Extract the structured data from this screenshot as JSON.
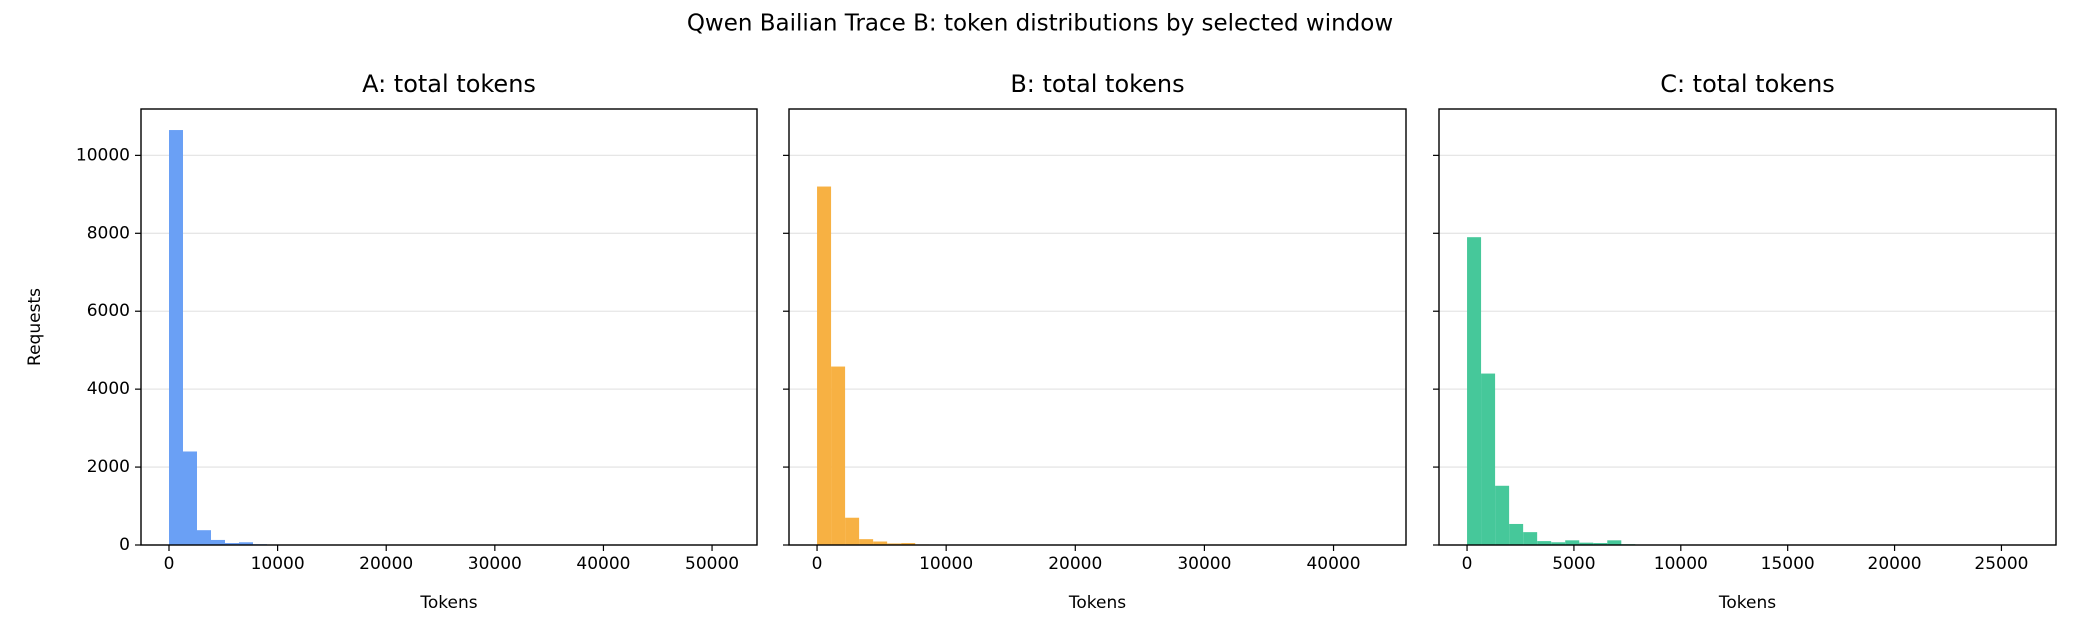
{
  "title": "Qwen Bailian Trace B: token distributions by selected window",
  "chart_data": [
    {
      "type": "histogram",
      "title": "A: total tokens",
      "xlabel": "Tokens",
      "ylabel": "Requests",
      "color": "#6aa0f5",
      "grid": true,
      "bins": [
        0,
        1289,
        2578,
        3867,
        5156,
        6445,
        7734,
        9023,
        10312,
        11601,
        12890,
        14179,
        15468,
        16757,
        18046,
        19335,
        20624,
        21913,
        23202,
        24491,
        25780,
        27069,
        28358,
        29647,
        30936,
        32225,
        33514,
        34803,
        36092,
        37381,
        38670,
        39959,
        41248,
        42537,
        43826,
        45115,
        46404,
        47693,
        48982,
        50271,
        51560
      ],
      "values": [
        10650,
        2400,
        380,
        130,
        50,
        70,
        20,
        10,
        5,
        4,
        3,
        2,
        2,
        1,
        1,
        1,
        0,
        1,
        0,
        0,
        0,
        0,
        0,
        0,
        0,
        0,
        0,
        0,
        0,
        0,
        0,
        0,
        0,
        0,
        0,
        0,
        0,
        0,
        0,
        1
      ],
      "xlim": [
        -2578,
        54138
      ],
      "xticks": [
        0,
        10000,
        20000,
        30000,
        40000,
        50000
      ],
      "ylim": [
        0,
        11190
      ],
      "yticks": [
        0,
        2000,
        4000,
        6000,
        8000,
        10000
      ]
    },
    {
      "type": "histogram",
      "title": "B: total tokens",
      "xlabel": "Tokens",
      "color": "#f7b143",
      "grid": true,
      "bins": [
        0,
        1086,
        2172,
        3258,
        4344,
        5430,
        6516,
        7602,
        8688,
        9774,
        10860,
        11946,
        13032,
        14118,
        15204,
        16290,
        17376,
        18462,
        19548,
        20634,
        21720,
        22806,
        23892,
        24978,
        26064,
        27150,
        28236,
        29322,
        30408,
        31494,
        32580,
        33666,
        34752,
        35838,
        36924,
        38010,
        39096,
        40182,
        41268,
        42354,
        43440
      ],
      "values": [
        9200,
        4580,
        700,
        150,
        90,
        40,
        50,
        15,
        8,
        5,
        3,
        2,
        2,
        1,
        1,
        0,
        1,
        0,
        0,
        0,
        0,
        0,
        0,
        0,
        0,
        0,
        0,
        0,
        0,
        0,
        0,
        0,
        0,
        0,
        0,
        0,
        0,
        0,
        0,
        1
      ],
      "xlim": [
        -2172,
        45612
      ],
      "xticks": [
        0,
        10000,
        20000,
        30000,
        40000
      ],
      "ylim": [
        0,
        11190
      ],
      "yticks": [
        0,
        2000,
        4000,
        6000,
        8000,
        10000
      ]
    },
    {
      "type": "histogram",
      "title": "C: total tokens",
      "xlabel": "Tokens",
      "color": "#46c89a",
      "grid": true,
      "bins": [
        0,
        656,
        1312,
        1968,
        2624,
        3280,
        3936,
        4592,
        5248,
        5904,
        6560,
        7216,
        7872,
        8528,
        9184,
        9840,
        10496,
        11152,
        11808,
        12464,
        13120,
        13776,
        14432,
        15088,
        15744,
        16400,
        17056,
        17712,
        18368,
        19024,
        19680,
        20336,
        20992,
        21648,
        22304,
        22960,
        23616,
        24272,
        24928,
        25584,
        26240
      ],
      "values": [
        7900,
        4400,
        1520,
        540,
        330,
        100,
        70,
        120,
        60,
        50,
        120,
        20,
        10,
        8,
        5,
        4,
        3,
        2,
        2,
        1,
        1,
        1,
        0,
        0,
        0,
        0,
        0,
        0,
        0,
        0,
        0,
        0,
        0,
        0,
        0,
        0,
        0,
        0,
        0,
        1
      ],
      "xlim": [
        -1312,
        27552
      ],
      "xticks": [
        0,
        5000,
        10000,
        15000,
        20000,
        25000
      ],
      "ylim": [
        0,
        11190
      ],
      "yticks": [
        0,
        2000,
        4000,
        6000,
        8000,
        10000
      ]
    }
  ]
}
